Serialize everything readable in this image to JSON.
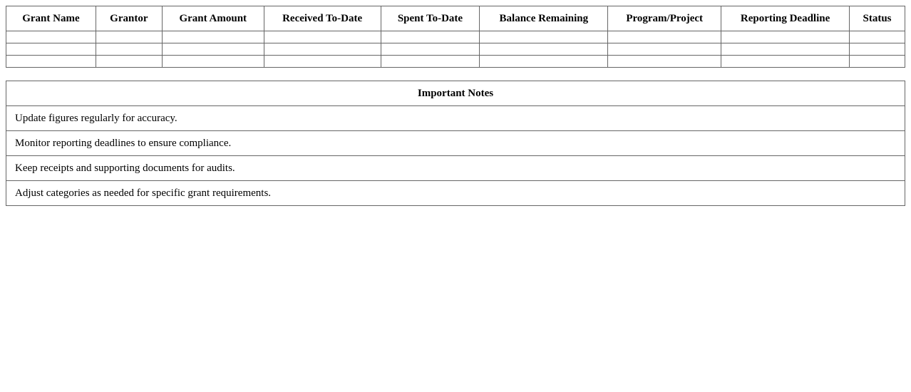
{
  "grants_table": {
    "headers": [
      "Grant Name",
      "Grantor",
      "Grant Amount",
      "Received To-Date",
      "Spent To-Date",
      "Balance Remaining",
      "Program/Project",
      "Reporting Deadline",
      "Status"
    ],
    "rows": [
      [
        "",
        "",
        "",
        "",
        "",
        "",
        "",
        "",
        ""
      ],
      [
        "",
        "",
        "",
        "",
        "",
        "",
        "",
        "",
        ""
      ],
      [
        "",
        "",
        "",
        "",
        "",
        "",
        "",
        "",
        ""
      ]
    ]
  },
  "notes_table": {
    "title": "Important Notes",
    "items": [
      "Update figures regularly for accuracy.",
      "Monitor reporting deadlines to ensure compliance.",
      "Keep receipts and supporting documents for audits.",
      "Adjust categories as needed for specific grant requirements."
    ]
  }
}
